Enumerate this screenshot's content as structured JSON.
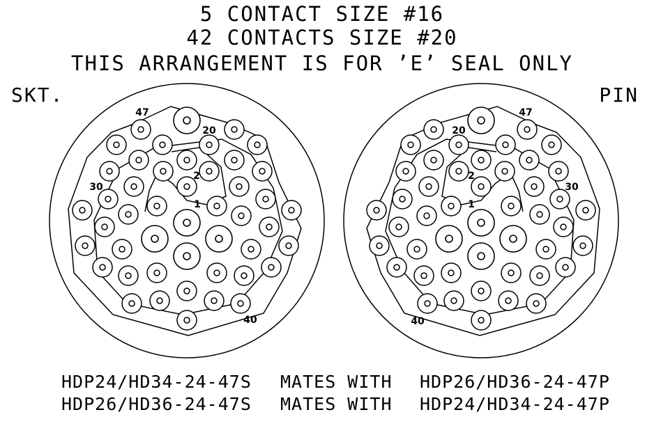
{
  "header": {
    "line1": "5 CONTACT SIZE #16",
    "line2": "42 CONTACTS SIZE #20",
    "line3": "THIS ARRANGEMENT IS FOR ’E’ SEAL ONLY"
  },
  "socket_label": "SKT.",
  "pin_label": "PIN",
  "contact_numbers": {
    "n1": "1",
    "n2": "2",
    "n20": "20",
    "n30": "30",
    "n40": "40",
    "n47": "47"
  },
  "mating": [
    {
      "part": "HDP24/HD34-24-47S",
      "relation": "MATES WITH",
      "mate": "HDP26/HD36-24-47P"
    },
    {
      "part": "HDP26/HD36-24-47S",
      "relation": "MATES WITH",
      "mate": "HDP24/HD34-24-47P"
    }
  ]
}
